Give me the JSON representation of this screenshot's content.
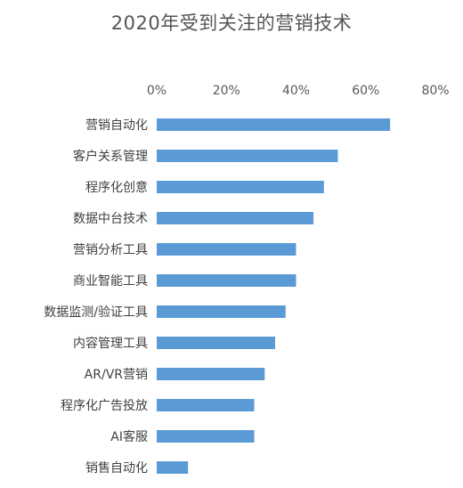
{
  "chart_data": {
    "type": "bar",
    "orientation": "horizontal",
    "title": "2020年受到关注的营销技术",
    "xlabel": "",
    "ylabel": "",
    "xlim": [
      0,
      80
    ],
    "x_ticks": [
      "0%",
      "20%",
      "40%",
      "60%",
      "80%"
    ],
    "x_tick_values": [
      0,
      20,
      40,
      60,
      80
    ],
    "x_axis_position": "top",
    "grid": false,
    "legend": "none",
    "bar_color": "#5B9BD5",
    "categories": [
      "营销自动化",
      "客户关系管理",
      "程序化创意",
      "数据中台技术",
      "营销分析工具",
      "商业智能工具",
      "数据监测/验证工具",
      "内容管理工具",
      "AR/VR营销",
      "程序化广告投放",
      "AI客服",
      "销售自动化"
    ],
    "values": [
      67,
      52,
      48,
      45,
      40,
      40,
      37,
      34,
      31,
      28,
      28,
      9
    ],
    "value_unit": "%"
  }
}
